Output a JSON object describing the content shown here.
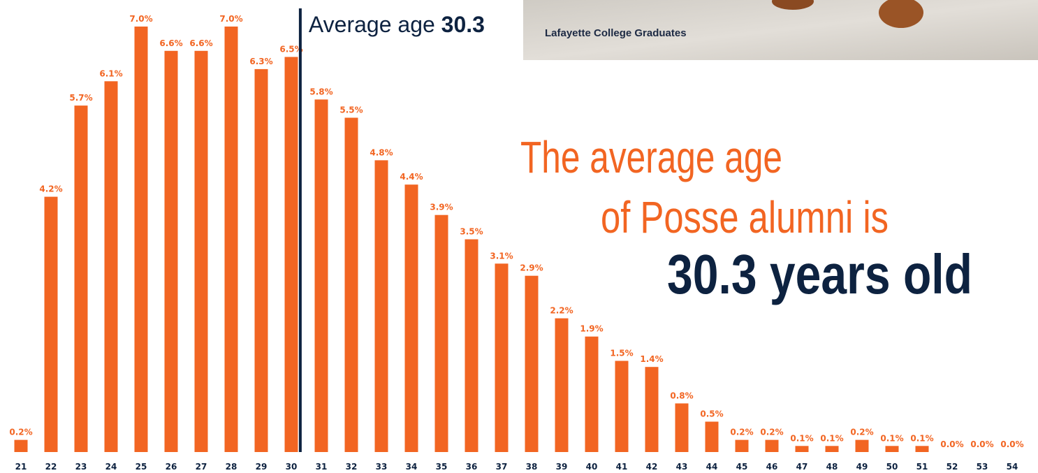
{
  "chart_data": {
    "type": "bar",
    "categories": [
      "21",
      "22",
      "23",
      "24",
      "25",
      "26",
      "27",
      "28",
      "29",
      "30",
      "31",
      "32",
      "33",
      "34",
      "35",
      "36",
      "37",
      "38",
      "39",
      "40",
      "41",
      "42",
      "43",
      "44",
      "45",
      "46",
      "47",
      "48",
      "49",
      "50",
      "51",
      "52",
      "53",
      "54"
    ],
    "values": [
      0.2,
      4.2,
      5.7,
      6.1,
      7.0,
      6.6,
      6.6,
      7.0,
      6.3,
      6.5,
      5.8,
      5.5,
      4.8,
      4.4,
      3.9,
      3.5,
      3.1,
      2.9,
      2.2,
      1.9,
      1.5,
      1.4,
      0.8,
      0.5,
      0.2,
      0.2,
      0.1,
      0.1,
      0.2,
      0.1,
      0.1,
      0.0,
      0.0,
      0.0
    ],
    "value_labels": [
      "0.2%",
      "4.2%",
      "5.7%",
      "6.1%",
      "7.0%",
      "6.6%",
      "6.6%",
      "7.0%",
      "6.3%",
      "6.5%",
      "5.8%",
      "5.5%",
      "4.8%",
      "4.4%",
      "3.9%",
      "3.5%",
      "3.1%",
      "2.9%",
      "2.2%",
      "1.9%",
      "1.5%",
      "1.4%",
      "0.8%",
      "0.5%",
      "0.2%",
      "0.2%",
      "0.1%",
      "0.1%",
      "0.2%",
      "0.1%",
      "0.1%",
      "0.0%",
      "0.0%",
      "0.0%"
    ],
    "color": "#f26522",
    "average": {
      "label": "Average age",
      "value": 30.3,
      "color": "#0d2240"
    },
    "headline": [
      "The average age",
      "of Posse alumni is",
      "30.3 years old"
    ],
    "photo_caption": "Lafayette College Graduates"
  }
}
